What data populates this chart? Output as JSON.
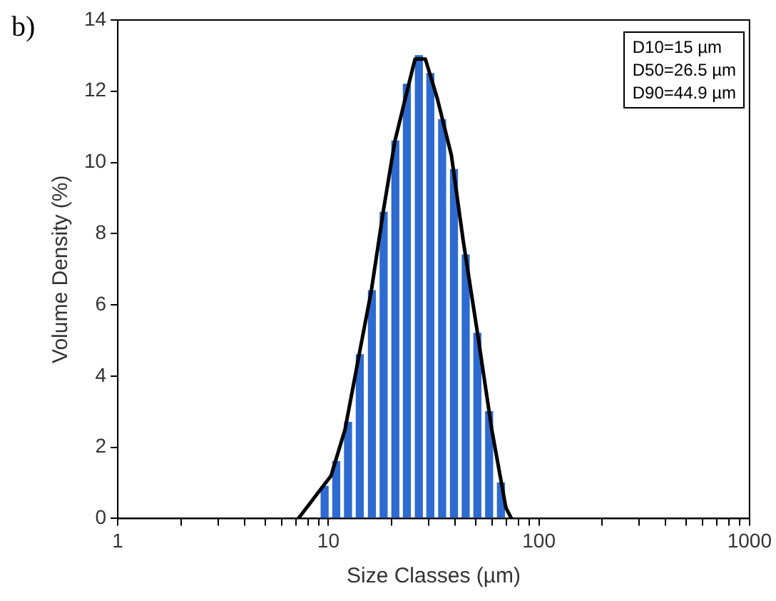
{
  "chart_data": {
    "type": "bar",
    "xlabel": "Size Classes (µm)",
    "ylabel": "Volume Density (%)",
    "log": "x",
    "xlim": [
      1,
      1000
    ],
    "ylim": [
      0,
      14
    ],
    "xticks": [
      1,
      {
        "value": 2,
        "label": null
      },
      {
        "value": 3,
        "label": null
      },
      {
        "value": 4,
        "label": null
      },
      {
        "value": 5,
        "label": null
      },
      {
        "value": 6,
        "label": null
      },
      {
        "value": 7,
        "label": null
      },
      {
        "value": 8,
        "label": null
      },
      {
        "value": 9,
        "label": null
      },
      10,
      {
        "value": 20,
        "label": null
      },
      {
        "value": 30,
        "label": null
      },
      {
        "value": 40,
        "label": null
      },
      {
        "value": 50,
        "label": null
      },
      {
        "value": 60,
        "label": null
      },
      {
        "value": 70,
        "label": null
      },
      {
        "value": 80,
        "label": null
      },
      {
        "value": 90,
        "label": null
      },
      100,
      {
        "value": 200,
        "label": null
      },
      {
        "value": 300,
        "label": null
      },
      {
        "value": 400,
        "label": null
      },
      {
        "value": 500,
        "label": null
      },
      {
        "value": 600,
        "label": null
      },
      {
        "value": 700,
        "label": null
      },
      {
        "value": 800,
        "label": null
      },
      {
        "value": 900,
        "label": null
      },
      1000
    ],
    "yticks": [
      0,
      2,
      4,
      6,
      8,
      10,
      12,
      14
    ],
    "grid": false,
    "legend": false,
    "annotations": [
      "b)",
      "D10=15 µm",
      "D50=26.5 µm",
      "D90=44.9 µm"
    ],
    "series": [
      {
        "color": "#2e6bd1",
        "x": [
          9.6,
          10.9,
          12.4,
          14.1,
          16.1,
          18.3,
          20.8,
          23.6,
          26.9,
          30.5,
          34.7,
          39.5,
          44.9,
          51.0,
          58.0,
          66.0
        ],
        "values": [
          0.9,
          1.6,
          2.7,
          4.6,
          6.4,
          8.6,
          10.6,
          12.2,
          13.0,
          12.5,
          11.2,
          9.8,
          7.4,
          5.2,
          3.0,
          1.0
        ]
      },
      {
        "type": "line",
        "color": "#000000",
        "marker": "none",
        "x": [
          7.2,
          10.3,
          12.0,
          14.0,
          16.0,
          18.2,
          20.7,
          24.8,
          25.8,
          28.9,
          32.9,
          38.4,
          43.7,
          51.1,
          59.7,
          69.7,
          74
        ],
        "values": [
          0,
          1.2,
          2.5,
          4.6,
          6.4,
          8.6,
          10.6,
          12.5,
          12.9,
          12.9,
          11.8,
          10.2,
          7.8,
          5.2,
          2.5,
          0.3,
          0
        ]
      }
    ]
  }
}
